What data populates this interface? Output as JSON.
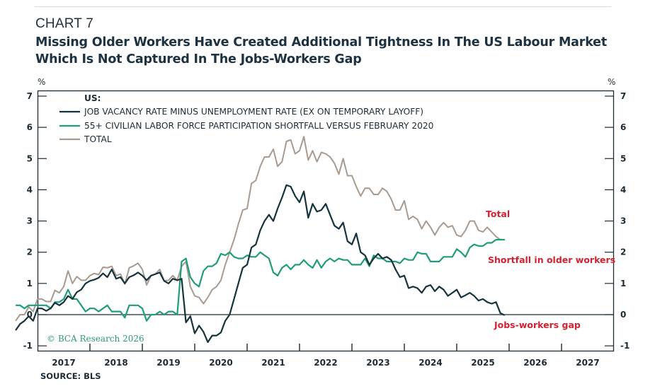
{
  "header": {
    "chart_number": "CHART 7",
    "title_line1": "Missing Older Workers Have Created Additional Tightness In The US Labour Market",
    "title_line2": "Which Is Not Captured In The Jobs-Workers Gap"
  },
  "footer": {
    "source": "SOURCE: BLS",
    "copyright": "© BCΑ Research 2026"
  },
  "colors": {
    "gap": "#15333d",
    "shortfall": "#1f9c7a",
    "total": "#a89a8e",
    "annotation": "#d6202f",
    "axis": "#1c2b33"
  },
  "chart_data": {
    "type": "line",
    "title": "Missing Older Workers Have Created Additional Tightness In The US Labour Market Which Is Not Captured In The Jobs-Workers Gap",
    "ylabel_left": "%",
    "ylabel_right": "%",
    "xlabel": "",
    "ylim": [
      -1,
      7
    ],
    "yticks": [
      -1,
      0,
      1,
      2,
      3,
      4,
      5,
      6,
      7
    ],
    "xlim": [
      2016.6,
      2027.6
    ],
    "xtick_labels": [
      "2017",
      "2018",
      "2019",
      "2020",
      "2021",
      "2022",
      "2023",
      "2024",
      "2025",
      "2026",
      "2027"
    ],
    "grid": false,
    "zero_line": true,
    "legend_title": "US:",
    "legend_position": "top-left",
    "x_start": 2016.583,
    "x_step_months": 1,
    "series": [
      {
        "key": "gap",
        "name": "JOB VACANCY RATE MINUS UNEMPLOYMENT RATE (EX ON TEMPORARY LAYOFF)",
        "values": [
          -0.5,
          -0.3,
          -0.2,
          -0.05,
          -0.2,
          0.2,
          0.2,
          0.12,
          0.2,
          0.38,
          0.3,
          0.4,
          0.6,
          0.5,
          0.72,
          0.8,
          1.0,
          1.08,
          1.12,
          1.18,
          1.32,
          1.2,
          1.45,
          1.15,
          1.2,
          1.0,
          1.2,
          1.26,
          1.35,
          1.25,
          1.1,
          1.25,
          1.3,
          1.35,
          1.08,
          1.0,
          1.15,
          1.1,
          1.15,
          -0.25,
          -0.05,
          -0.6,
          -0.35,
          -0.55,
          -0.88,
          -0.67,
          -0.67,
          -0.57,
          -0.2,
          0.0,
          0.5,
          1.0,
          1.5,
          1.6,
          2.15,
          2.25,
          2.7,
          3.0,
          3.2,
          3.0,
          3.4,
          3.75,
          4.15,
          4.1,
          3.8,
          3.6,
          3.95,
          3.1,
          3.55,
          3.3,
          3.35,
          3.55,
          3.2,
          2.85,
          2.75,
          2.95,
          2.35,
          2.25,
          2.6,
          2.0,
          1.9,
          1.6,
          1.8,
          1.95,
          1.8,
          1.85,
          1.75,
          1.45,
          1.2,
          1.25,
          0.85,
          0.9,
          0.85,
          0.7,
          0.9,
          0.95,
          0.75,
          0.9,
          0.8,
          0.6,
          0.7,
          0.8,
          0.55,
          0.62,
          0.7,
          0.6,
          0.45,
          0.5,
          0.4,
          0.35,
          0.4,
          0.05,
          -0.02
        ]
      },
      {
        "key": "shortfall",
        "name": "55+ CIVILIAN LABOR FORCE PARTICIPATION SHORTFALL VERSUS FEBRUARY 2020",
        "values": [
          0.3,
          0.3,
          0.2,
          0.3,
          0.3,
          0.3,
          0.3,
          0.3,
          0.2,
          0.4,
          0.4,
          0.5,
          0.8,
          0.5,
          0.5,
          0.3,
          0.1,
          0.2,
          0.2,
          0.1,
          0.2,
          0.3,
          0.1,
          0.1,
          0.1,
          -0.1,
          0.3,
          0.3,
          0.3,
          0.2,
          -0.2,
          0.0,
          0.0,
          0.1,
          0.0,
          0.1,
          0.1,
          0.0,
          1.7,
          1.8,
          1.2,
          1.0,
          0.9,
          1.4,
          1.55,
          1.55,
          1.65,
          1.95,
          1.9,
          2.0,
          1.85,
          1.8,
          1.8,
          1.9,
          1.85,
          1.85,
          2.0,
          1.9,
          1.8,
          1.35,
          1.25,
          1.5,
          1.6,
          1.45,
          1.6,
          1.6,
          1.75,
          1.6,
          1.5,
          1.75,
          1.5,
          1.7,
          1.8,
          1.7,
          1.8,
          1.75,
          1.75,
          1.6,
          1.6,
          1.6,
          1.8,
          1.55,
          1.9,
          1.8,
          1.8,
          1.7,
          1.7,
          1.7,
          1.65,
          1.8,
          1.75,
          1.75,
          2.0,
          1.95,
          1.95,
          1.7,
          1.7,
          1.7,
          1.85,
          1.85,
          1.85,
          2.1,
          2.0,
          1.85,
          2.15,
          2.25,
          2.2,
          2.2,
          2.3,
          2.3,
          2.4,
          2.4,
          2.4
        ]
      },
      {
        "key": "total",
        "name": "TOTAL",
        "values": [
          -0.2,
          0.0,
          0.0,
          0.25,
          0.1,
          0.5,
          0.5,
          0.42,
          0.42,
          0.78,
          0.7,
          0.9,
          1.4,
          1.0,
          1.22,
          1.1,
          1.1,
          1.25,
          1.32,
          1.28,
          1.52,
          1.5,
          1.55,
          1.25,
          1.3,
          0.98,
          1.5,
          1.56,
          1.65,
          1.45,
          0.95,
          1.25,
          1.3,
          1.45,
          1.08,
          1.1,
          1.25,
          1.1,
          1.55,
          1.7,
          0.9,
          0.6,
          0.55,
          0.35,
          0.55,
          0.8,
          0.9,
          1.1,
          1.6,
          2.0,
          2.4,
          2.9,
          3.35,
          3.4,
          4.2,
          4.3,
          4.75,
          5.05,
          5.05,
          5.3,
          4.75,
          4.9,
          5.55,
          5.6,
          5.15,
          5.25,
          5.7,
          4.95,
          5.25,
          4.9,
          5.2,
          5.15,
          5.05,
          4.85,
          4.5,
          5.0,
          4.45,
          4.45,
          4.1,
          3.8,
          4.05,
          4.05,
          3.85,
          3.85,
          4.05,
          3.95,
          3.7,
          3.35,
          3.35,
          3.65,
          3.05,
          3.15,
          3.05,
          2.75,
          3.0,
          2.8,
          2.55,
          2.8,
          2.95,
          2.8,
          2.85,
          2.55,
          2.5,
          2.7,
          3.0,
          3.0,
          2.7,
          2.65,
          2.8,
          2.65,
          2.5,
          2.4,
          2.4
        ]
      }
    ],
    "annotations": [
      {
        "text": "Total",
        "series": "total"
      },
      {
        "text": "Shortfall in older workers",
        "series": "shortfall"
      },
      {
        "text": "Jobs-workers gap",
        "series": "gap"
      }
    ]
  }
}
